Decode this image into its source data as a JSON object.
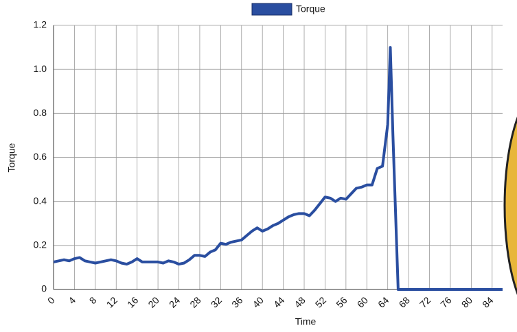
{
  "chart_data": {
    "type": "line",
    "xlabel": "Time",
    "ylabel": "Torque",
    "x": [
      0,
      1,
      2,
      3,
      4,
      5,
      6,
      7,
      8,
      9,
      10,
      11,
      12,
      13,
      14,
      15,
      16,
      17,
      18,
      19,
      20,
      21,
      22,
      23,
      24,
      25,
      26,
      27,
      28,
      29,
      30,
      31,
      32,
      33,
      34,
      35,
      36,
      37,
      38,
      39,
      40,
      41,
      42,
      43,
      44,
      45,
      46,
      47,
      48,
      49,
      50,
      51,
      52,
      53,
      54,
      55,
      56,
      57,
      58,
      59,
      60,
      61,
      62,
      63,
      64,
      64.5,
      65,
      66,
      67,
      68,
      69,
      70,
      71,
      72,
      73,
      74,
      75,
      76,
      77,
      78,
      79,
      80,
      81,
      82,
      83,
      84,
      85,
      86
    ],
    "series": [
      {
        "name": "Torque",
        "color": "#2a4ea0",
        "values": [
          0.125,
          0.13,
          0.135,
          0.13,
          0.14,
          0.145,
          0.13,
          0.125,
          0.12,
          0.125,
          0.13,
          0.135,
          0.13,
          0.12,
          0.115,
          0.125,
          0.14,
          0.125,
          0.125,
          0.125,
          0.125,
          0.12,
          0.13,
          0.125,
          0.115,
          0.12,
          0.135,
          0.155,
          0.155,
          0.15,
          0.17,
          0.18,
          0.21,
          0.205,
          0.215,
          0.22,
          0.225,
          0.245,
          0.265,
          0.28,
          0.265,
          0.275,
          0.29,
          0.3,
          0.315,
          0.33,
          0.34,
          0.345,
          0.345,
          0.335,
          0.36,
          0.39,
          0.42,
          0.415,
          0.4,
          0.415,
          0.41,
          0.435,
          0.46,
          0.465,
          0.475,
          0.475,
          0.55,
          0.56,
          0.75,
          1.1,
          0.7,
          0,
          0,
          0,
          0,
          0,
          0,
          0,
          0,
          0,
          0,
          0,
          0,
          0,
          0,
          0,
          0,
          0,
          0,
          0,
          0,
          0
        ]
      }
    ],
    "xlim": [
      0,
      86
    ],
    "xticks": [
      0,
      4,
      8,
      12,
      16,
      20,
      24,
      28,
      32,
      36,
      40,
      44,
      48,
      52,
      56,
      60,
      64,
      68,
      72,
      76,
      80,
      84
    ],
    "ylim": [
      0,
      1.2
    ],
    "yticks": [
      0,
      0.2,
      0.4,
      0.6,
      0.8,
      {
        "value": 1,
        "label": "1.0"
      },
      1.2
    ],
    "grid": true,
    "legend": "top"
  }
}
